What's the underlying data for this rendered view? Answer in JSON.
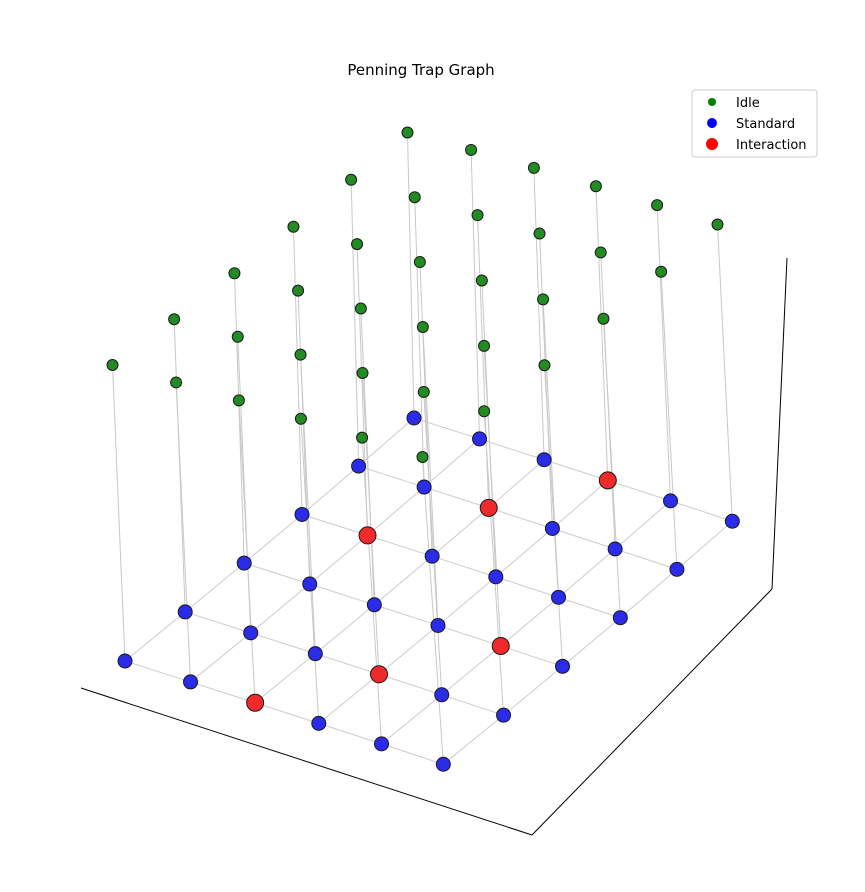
{
  "chart_data": {
    "type": "scatter",
    "title": "Penning Trap Graph",
    "projection": "3d",
    "grid": false,
    "legend_placement": "top-right",
    "legend": [
      {
        "label": "Idle",
        "color": "#008000"
      },
      {
        "label": "Standard",
        "color": "#0000ff"
      },
      {
        "label": "Interaction",
        "color": "#ff0000"
      }
    ],
    "lattice": {
      "rows": 6,
      "cols": 6,
      "interaction_sites": [
        [
          0,
          2
        ],
        [
          1,
          3
        ],
        [
          2,
          4
        ],
        [
          3,
          1
        ],
        [
          4,
          2
        ],
        [
          5,
          3
        ]
      ]
    },
    "series": [
      {
        "name": "Idle",
        "level": "upper",
        "color": "#228b22"
      },
      {
        "name": "Standard",
        "level": "base",
        "color": "#2b2bea"
      },
      {
        "name": "Interaction",
        "level": "base",
        "color": "#f02a2a"
      }
    ]
  }
}
